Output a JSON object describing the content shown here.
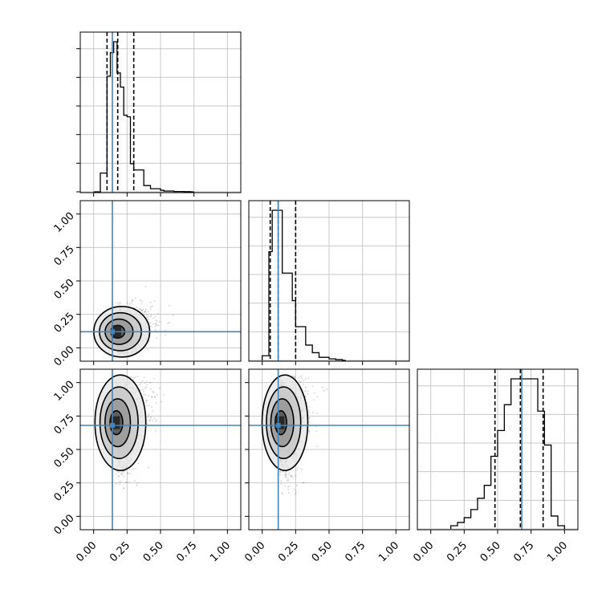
{
  "chart_data": {
    "type": "corner",
    "parameters": 3,
    "axis_range": [
      -0.1,
      1.1
    ],
    "tick_values": [
      0.0,
      0.25,
      0.5,
      0.75,
      1.0
    ],
    "tick_labels": [
      "0.00",
      "0.25",
      "0.50",
      "0.75",
      "1.00"
    ],
    "grid": true,
    "colors": {
      "truth": "#4682b4",
      "hist": "#000000",
      "quantile": "#000000",
      "grid": "#c8c8c8"
    },
    "truths": [
      0.14,
      0.12,
      0.68
    ],
    "quantiles": [
      {
        "param": 0,
        "values": [
          0.1,
          0.18,
          0.3
        ]
      },
      {
        "param": 1,
        "values": [
          0.06,
          0.12,
          0.25
        ]
      },
      {
        "param": 2,
        "values": [
          0.48,
          0.67,
          0.84
        ]
      }
    ],
    "histograms": [
      {
        "param": 0,
        "bin_edges": [
          0.0,
          0.025,
          0.05,
          0.075,
          0.1,
          0.125,
          0.15,
          0.175,
          0.2,
          0.225,
          0.25,
          0.275,
          0.3,
          0.325,
          0.35,
          0.375,
          0.4,
          0.425,
          0.45,
          0.475,
          0.5,
          0.525,
          0.55,
          0.575,
          0.6,
          0.625,
          0.65,
          0.675,
          0.7,
          0.725,
          0.75
        ],
        "counts": [
          0,
          0,
          0.12,
          0.12,
          0.74,
          0.89,
          0.96,
          0.76,
          0.67,
          0.49,
          0.48,
          0.18,
          0.14,
          0.14,
          0.14,
          0.04,
          0.04,
          0.02,
          0.02,
          0.02,
          0.01,
          0.005,
          0.005,
          0.005,
          0.002,
          0.002,
          0.002,
          0.001,
          0.001,
          0.0
        ]
      },
      {
        "param": 1,
        "bin_edges": [
          0.0,
          0.025,
          0.05,
          0.075,
          0.1,
          0.125,
          0.15,
          0.175,
          0.2,
          0.225,
          0.25,
          0.275,
          0.3,
          0.325,
          0.35,
          0.375,
          0.4,
          0.425,
          0.45,
          0.475,
          0.5,
          0.525,
          0.55,
          0.575,
          0.6,
          0.625
        ],
        "counts": [
          0.03,
          0.03,
          0.71,
          0.98,
          0.98,
          0.98,
          0.57,
          0.57,
          0.57,
          0.39,
          0.22,
          0.22,
          0.22,
          0.1,
          0.1,
          0.05,
          0.05,
          0.02,
          0.02,
          0.02,
          0.01,
          0.01,
          0.005,
          0.005,
          0.0
        ]
      },
      {
        "param": 2,
        "bin_edges": [
          0.15,
          0.2,
          0.25,
          0.3,
          0.35,
          0.4,
          0.45,
          0.5,
          0.55,
          0.6,
          0.65,
          0.7,
          0.75,
          0.8,
          0.85,
          0.9,
          0.95,
          1.0
        ],
        "counts": [
          0.02,
          0.04,
          0.07,
          0.12,
          0.19,
          0.27,
          0.45,
          0.61,
          0.77,
          0.93,
          0.93,
          0.93,
          0.93,
          0.73,
          0.52,
          0.08,
          0.02
        ]
      }
    ],
    "scatter_panels": [
      {
        "row": 1,
        "col": 0,
        "x_param": 0,
        "y_param": 1,
        "center": [
          0.17,
          0.12
        ],
        "spread": [
          0.11,
          0.09
        ],
        "correlation": 0.3
      },
      {
        "row": 2,
        "col": 0,
        "x_param": 0,
        "y_param": 2,
        "center": [
          0.16,
          0.7
        ],
        "spread": [
          0.1,
          0.17
        ],
        "correlation": 0.35
      },
      {
        "row": 2,
        "col": 1,
        "x_param": 1,
        "y_param": 2,
        "center": [
          0.13,
          0.7
        ],
        "spread": [
          0.09,
          0.17
        ],
        "correlation": 0.35
      }
    ],
    "contour_levels": [
      "0.5-sigma",
      "1-sigma",
      "1.5-sigma",
      "2-sigma"
    ]
  }
}
